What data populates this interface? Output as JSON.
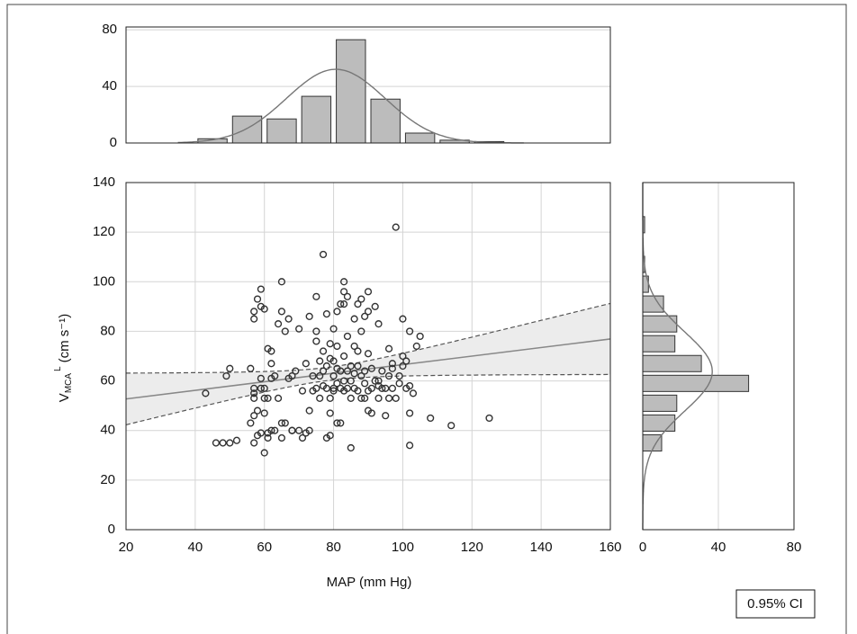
{
  "chart_data": [
    {
      "type": "histogram",
      "bins": [
        40,
        50,
        60,
        70,
        80,
        90,
        100,
        110,
        120,
        130
      ],
      "values": [
        3,
        19,
        17,
        33,
        73,
        31,
        7,
        2,
        1
      ],
      "color": "#bcbcbc",
      "xlim": [
        20,
        160
      ],
      "ylim": [
        0,
        82
      ],
      "yticks": [
        0,
        40,
        80
      ],
      "grid": true
    },
    {
      "type": "scatter",
      "x": [
        43,
        46,
        48,
        49,
        50,
        50,
        52,
        56,
        56,
        57,
        57,
        57,
        57,
        57,
        57,
        57,
        58,
        58,
        58,
        59,
        59,
        59,
        59,
        59,
        60,
        60,
        60,
        60,
        60,
        61,
        61,
        61,
        61,
        62,
        62,
        62,
        62,
        63,
        63,
        64,
        64,
        65,
        65,
        65,
        65,
        66,
        66,
        67,
        67,
        68,
        68,
        68,
        69,
        70,
        70,
        71,
        71,
        72,
        72,
        73,
        73,
        73,
        74,
        74,
        75,
        75,
        75,
        75,
        76,
        76,
        76,
        77,
        77,
        77,
        77,
        78,
        78,
        78,
        78,
        79,
        79,
        79,
        79,
        79,
        80,
        80,
        80,
        80,
        80,
        81,
        81,
        81,
        81,
        81,
        82,
        82,
        82,
        82,
        83,
        83,
        83,
        83,
        83,
        83,
        84,
        84,
        84,
        84,
        85,
        85,
        85,
        85,
        86,
        86,
        86,
        86,
        87,
        87,
        87,
        87,
        88,
        88,
        88,
        88,
        89,
        89,
        89,
        89,
        90,
        90,
        90,
        90,
        90,
        91,
        91,
        91,
        92,
        92,
        93,
        93,
        93,
        93,
        94,
        94,
        95,
        95,
        96,
        96,
        96,
        97,
        97,
        97,
        98,
        98,
        99,
        99,
        100,
        100,
        100,
        101,
        101,
        102,
        102,
        102,
        102,
        103,
        104,
        105,
        108,
        114,
        125
      ],
      "values": [
        55,
        35,
        35,
        62,
        65,
        35,
        36,
        43,
        65,
        35,
        46,
        53,
        55,
        57,
        85,
        88,
        38,
        48,
        93,
        97,
        39,
        90,
        61,
        57,
        31,
        57,
        53,
        89,
        47,
        39,
        73,
        53,
        37,
        72,
        40,
        67,
        61,
        40,
        62,
        53,
        83,
        43,
        100,
        88,
        37,
        43,
        80,
        61,
        85,
        40,
        40,
        62,
        64,
        40,
        81,
        37,
        56,
        39,
        67,
        86,
        48,
        40,
        62,
        56,
        94,
        57,
        76,
        80,
        62,
        68,
        53,
        111,
        58,
        64,
        72,
        66,
        57,
        37,
        87,
        53,
        47,
        75,
        69,
        38,
        62,
        57,
        81,
        68,
        56,
        88,
        74,
        43,
        59,
        65,
        57,
        43,
        64,
        91,
        91,
        100,
        96,
        70,
        60,
        56,
        94,
        64,
        78,
        57,
        33,
        66,
        53,
        60,
        74,
        85,
        57,
        63,
        72,
        66,
        56,
        91,
        62,
        53,
        80,
        93,
        53,
        64,
        59,
        86,
        88,
        56,
        96,
        71,
        48,
        47,
        65,
        57,
        90,
        60,
        53,
        58,
        83,
        60,
        57,
        64,
        57,
        46,
        62,
        73,
        53,
        57,
        67,
        65,
        122,
        53,
        59,
        62,
        85,
        70,
        66,
        68,
        57,
        80,
        58,
        47,
        34,
        55,
        74,
        78,
        45,
        42,
        45
      ],
      "color": "#333333",
      "xlim": [
        20,
        160
      ],
      "ylim": [
        0,
        140
      ],
      "xticks": [
        20,
        40,
        60,
        80,
        100,
        120,
        140,
        160
      ],
      "yticks": [
        0,
        20,
        40,
        60,
        80,
        100,
        120,
        140
      ],
      "grid": true,
      "xlabel": "MAP (mm Hg)",
      "ylabel": {
        "symbol": "V",
        "sub": "MCA",
        "sup": "L",
        "unit": "(cm s⁻¹)"
      }
    },
    {
      "type": "histogram",
      "orientation": "horizontal",
      "bins": [
        31,
        39,
        47,
        55,
        63,
        71,
        79,
        87,
        95,
        103,
        111,
        119,
        127
      ],
      "values": [
        10,
        17,
        18,
        56,
        31,
        17,
        18,
        11,
        3,
        1,
        0,
        1
      ],
      "color": "#bcbcbc",
      "xlim": [
        0,
        80
      ],
      "xticks": [
        0,
        40,
        80
      ],
      "ylim": [
        0,
        140
      ],
      "grid": true
    }
  ],
  "legend": {
    "label": "0.95% CI"
  }
}
